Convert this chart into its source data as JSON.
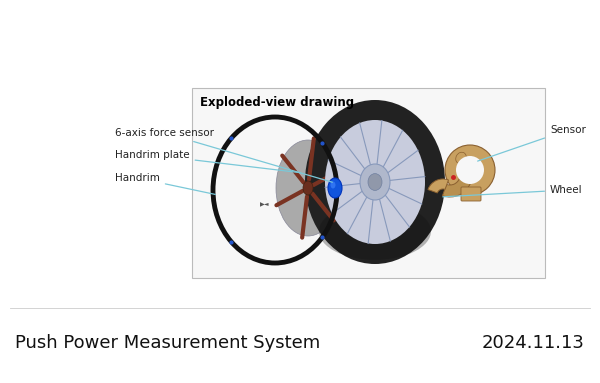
{
  "title_left": "Push Power Measurement System",
  "title_right": "2024.11.13",
  "box_title": "Exploded-view drawing",
  "bg_color": "#ffffff",
  "box_edge_color": "#bbbbbb",
  "box_face_color": "#f7f7f7",
  "label_6axis": "6-axis force sensor",
  "label_handrim_plate": "Handrim plate",
  "label_handrim": "Handrim",
  "label_sensor": "Sensor",
  "label_wheel": "Wheel",
  "label_fontsize": 7.5,
  "boxtitle_fontsize": 8.5,
  "footer_fontsize": 13,
  "line_color": "#7ac8d8",
  "tire_color": "#222222",
  "rim_color": "#b0b8cc",
  "spoke_color": "#8899bb",
  "plate_color": "#aaaaaa",
  "arm_color": "#7a3322",
  "hub_color": "#6a2e1e",
  "blue_hub_color": "#1155dd",
  "handrim_color": "#111111",
  "sensor_colors": [
    "#c8a060",
    "#b89050",
    "#c8a060",
    "#d4aa70",
    "#c8a060",
    "#b89050"
  ],
  "sensor_edge": "#8a6030"
}
